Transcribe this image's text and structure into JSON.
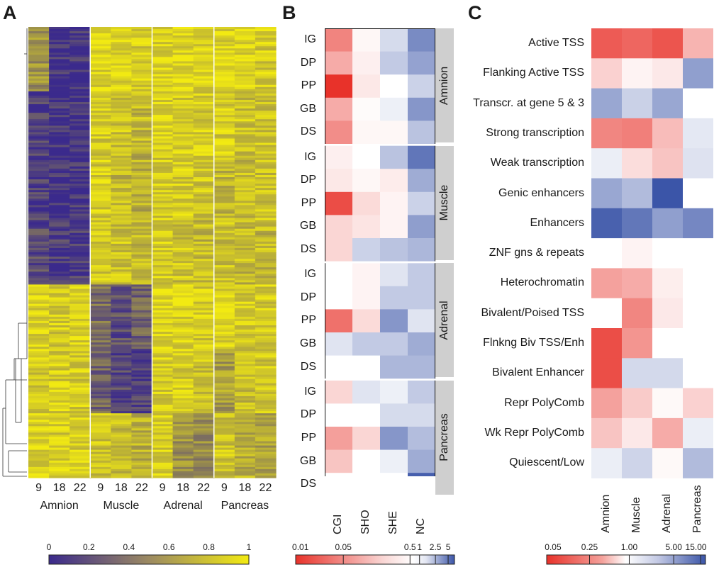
{
  "panels": {
    "a": "A",
    "b": "B",
    "c": "C"
  },
  "panel_a": {
    "timepoints": [
      "9",
      "18",
      "22"
    ],
    "tissues": [
      "Amnion",
      "Muscle",
      "Adrenal",
      "Pancreas"
    ],
    "colorbar": {
      "ticks": [
        "0",
        "0.2",
        "0.4",
        "0.6",
        "0.8",
        "1"
      ],
      "low_color": "#3b2a8c",
      "high_color": "#f2ea12"
    }
  },
  "panel_b": {
    "groups": [
      "Amnion",
      "Muscle",
      "Adrenal",
      "Pancreas"
    ],
    "rows": [
      "IG",
      "DP",
      "PP",
      "GB",
      "DS"
    ],
    "columns": [
      "CGI",
      "SHO",
      "SHE",
      "NC"
    ],
    "colorbar": {
      "ticks": [
        "0.01",
        "0.05",
        "0.5",
        "1",
        "2.5",
        "5"
      ]
    }
  },
  "panel_c": {
    "rows": [
      "Active TSS",
      "Flanking Active TSS",
      "Transcr. at gene 5 & 3",
      "Strong transcription",
      "Weak transcription",
      "Genic enhancers",
      "Enhancers",
      "ZNF gns & repeats",
      "Heterochromatin",
      "Bivalent/Poised TSS",
      "Flnkng Biv TSS/Enh",
      "Bivalent Enhancer",
      "Repr PolyComb",
      "Wk Repr PolyComb",
      "Quiescent/Low"
    ],
    "columns": [
      "Amnion",
      "Muscle",
      "Adrenal",
      "Pancreas"
    ],
    "colorbar": {
      "ticks": [
        "0.05",
        "0.25",
        "1.00",
        "5.00",
        "15.00"
      ]
    }
  },
  "chart_data": [
    {
      "type": "heatmap",
      "panel": "A",
      "x": [
        "9",
        "18",
        "22",
        "9",
        "18",
        "22",
        "9",
        "18",
        "22",
        "9",
        "18",
        "22"
      ],
      "groups": [
        "Amnion",
        "Muscle",
        "Adrenal",
        "Pancreas"
      ],
      "color_range": [
        0,
        1
      ],
      "block_mean_values": [
        [
          0.55,
          0.05,
          0.05,
          0.9,
          0.9,
          0.85,
          0.9,
          0.9,
          0.9,
          0.9,
          0.9,
          0.85
        ],
        [
          0.1,
          0.05,
          0.05,
          0.85,
          0.8,
          0.75,
          0.9,
          0.85,
          0.85,
          0.85,
          0.8,
          0.8
        ],
        [
          0.1,
          0.05,
          0.05,
          0.85,
          0.75,
          0.7,
          0.85,
          0.85,
          0.8,
          0.75,
          0.75,
          0.8
        ],
        [
          0.15,
          0.1,
          0.1,
          0.85,
          0.8,
          0.75,
          0.85,
          0.8,
          0.75,
          0.8,
          0.75,
          0.75
        ],
        [
          0.9,
          0.85,
          0.85,
          0.35,
          0.2,
          0.3,
          0.9,
          0.9,
          0.85,
          0.9,
          0.85,
          0.85
        ],
        [
          0.85,
          0.85,
          0.85,
          0.3,
          0.15,
          0.1,
          0.85,
          0.85,
          0.8,
          0.6,
          0.75,
          0.8
        ],
        [
          0.9,
          0.85,
          0.85,
          0.8,
          0.75,
          0.7,
          0.85,
          0.55,
          0.5,
          0.8,
          0.7,
          0.65
        ]
      ]
    },
    {
      "type": "heatmap",
      "panel": "B",
      "rows": [
        "IG",
        "DP",
        "PP",
        "GB",
        "DS",
        "IG",
        "DP",
        "PP",
        "GB",
        "DS",
        "IG",
        "DP",
        "PP",
        "GB",
        "DS",
        "IG",
        "DP",
        "PP",
        "GB",
        "DS"
      ],
      "row_groups": [
        "Amnion",
        "Amnion",
        "Amnion",
        "Amnion",
        "Amnion",
        "Muscle",
        "Muscle",
        "Muscle",
        "Muscle",
        "Muscle",
        "Adrenal",
        "Adrenal",
        "Adrenal",
        "Adrenal",
        "Adrenal",
        "Pancreas",
        "Pancreas",
        "Pancreas",
        "Pancreas",
        "Pancreas"
      ],
      "columns": [
        "CGI",
        "SHO",
        "SHE",
        "NC"
      ],
      "scale": "log",
      "values": [
        [
          0.08,
          0.9,
          1.3,
          2.8
        ],
        [
          0.2,
          0.8,
          1.5,
          2.2
        ],
        [
          0.01,
          0.7,
          1.0,
          1.4
        ],
        [
          0.2,
          0.95,
          1.1,
          2.5
        ],
        [
          0.1,
          0.9,
          0.9,
          1.6
        ],
        [
          0.8,
          1.0,
          1.6,
          3.5
        ],
        [
          0.7,
          0.9,
          0.75,
          2.0
        ],
        [
          0.02,
          0.55,
          0.85,
          1.4
        ],
        [
          0.5,
          0.65,
          0.85,
          2.3
        ],
        [
          0.5,
          1.4,
          1.6,
          1.8
        ],
        [
          1.0,
          0.85,
          1.2,
          1.5
        ],
        [
          1.0,
          0.85,
          1.5,
          1.5
        ],
        [
          0.05,
          0.55,
          2.5,
          1.2
        ],
        [
          1.2,
          1.5,
          1.5,
          2.0
        ],
        [
          1.0,
          1.0,
          1.8,
          1.8
        ],
        [
          0.5,
          1.2,
          1.1,
          1.5
        ],
        [
          1.0,
          1.0,
          1.3,
          1.3
        ],
        [
          0.15,
          0.5,
          2.5,
          1.7
        ],
        [
          0.35,
          1.0,
          1.1,
          2.0
        ],
        [
          1.0,
          1.0,
          1.0,
          4.5
        ]
      ],
      "color_range": [
        0.01,
        5
      ]
    },
    {
      "type": "heatmap",
      "panel": "C",
      "rows": [
        "Active TSS",
        "Flanking Active TSS",
        "Transcr. at gene 5 & 3",
        "Strong transcription",
        "Weak transcription",
        "Genic enhancers",
        "Enhancers",
        "ZNF gns & repeats",
        "Heterochromatin",
        "Bivalent/Poised TSS",
        "Flnkng Biv TSS/Enh",
        "Bivalent Enhancer",
        "Repr PolyComb",
        "Wk Repr PolyComb",
        "Quiescent/Low"
      ],
      "columns": [
        "Amnion",
        "Muscle",
        "Adrenal",
        "Pancreas"
      ],
      "scale": "log",
      "values": [
        [
          0.1,
          0.12,
          0.09,
          0.4
        ],
        [
          0.6,
          0.9,
          0.8,
          4.0
        ],
        [
          3.5,
          1.8,
          3.5,
          1.0
        ],
        [
          0.2,
          0.18,
          0.45,
          1.3
        ],
        [
          1.2,
          0.7,
          0.5,
          1.4
        ],
        [
          3.5,
          2.5,
          15.0,
          1.0
        ],
        [
          12.0,
          8.0,
          4.0,
          6.0
        ],
        [
          1.0,
          0.9,
          1.0,
          1.0
        ],
        [
          0.3,
          0.35,
          0.85,
          1.0
        ],
        [
          1.0,
          0.2,
          0.8,
          1.0
        ],
        [
          0.08,
          0.25,
          1.0,
          1.0
        ],
        [
          0.08,
          1.6,
          1.6,
          1.0
        ],
        [
          0.3,
          0.55,
          0.95,
          0.6
        ],
        [
          0.5,
          0.8,
          0.35,
          1.2
        ],
        [
          1.2,
          1.7,
          0.95,
          2.5
        ]
      ],
      "color_range": [
        0.05,
        15
      ]
    }
  ]
}
